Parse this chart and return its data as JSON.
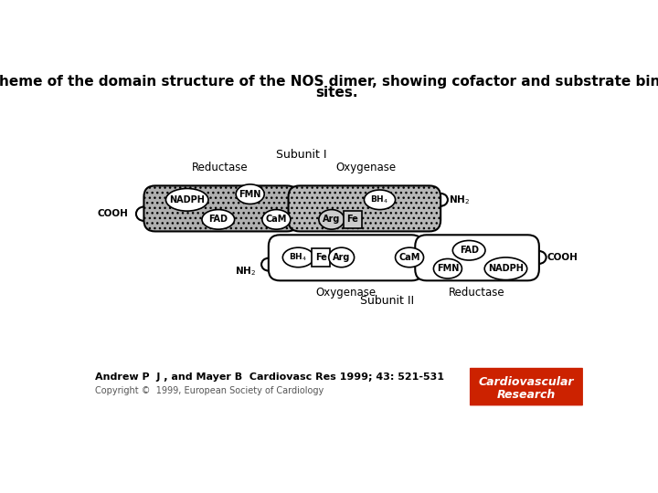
{
  "title_line1": "Scheme of the domain structure of the NOS dimer, showing cofactor and substrate binding",
  "title_line2": "sites.",
  "title_fontsize": 11,
  "citation": "Andrew P  J , and Mayer B  Cardiovasc Res 1999; 43: 521-531",
  "copyright": "Copyright ©  1999, European Society of Cardiology",
  "background_color": "#ffffff",
  "subunit1_label": "Subunit I",
  "subunit2_label": "Subunit II",
  "reductase1_label": "Reductase",
  "oxygenase1_label": "Oxygenase",
  "oxygenase2_label": "Oxygenase",
  "reductase2_label": "Reductase",
  "logo_bg": "#cc2200"
}
